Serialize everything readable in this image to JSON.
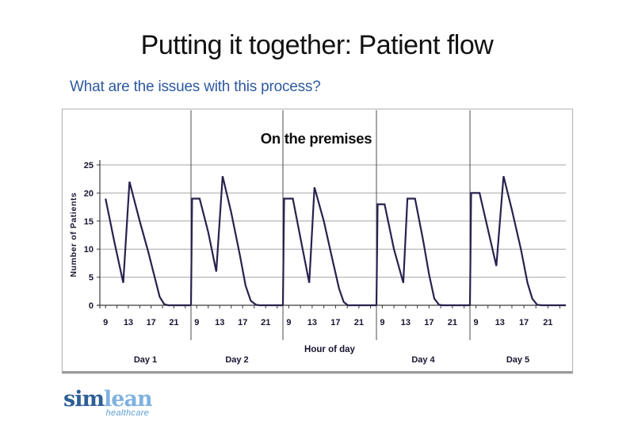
{
  "slide": {
    "title": "Putting it together: Patient flow",
    "subtitle": "What are the issues with this process?"
  },
  "colors": {
    "title_text": "#111111",
    "subtitle_text": "#2d5a9e",
    "line": "#29214d",
    "grid": "#a6a6a6",
    "axis": "#3c3c3c",
    "divider": "#4d4d4d",
    "chart_text": "#17142f",
    "chart_title_text": "#0d0d0d",
    "logo_part1": "#2e5f96",
    "logo_part2": "#7fb2e0",
    "logo_tagline": "#5f9fd4"
  },
  "chart_data": {
    "type": "line",
    "title": "On the premises",
    "ylabel": "Number of Patients",
    "xlabel": "Hour of day",
    "ylim": [
      0,
      25
    ],
    "yticks": [
      0,
      5,
      10,
      15,
      20,
      25
    ],
    "grid": true,
    "hour_range": [
      8,
      24
    ],
    "hour_ticks": [
      9,
      13,
      17,
      21
    ],
    "minor_hour_ticks": [
      9,
      11,
      13,
      15,
      17,
      19,
      21,
      23
    ],
    "legend": "none",
    "series_name": "Number of patients on the premises",
    "day_panels": [
      {
        "label": "Day 1",
        "points": [
          [
            9,
            19
          ],
          [
            10.5,
            11.5
          ],
          [
            12.1,
            4
          ],
          [
            13.2,
            22
          ],
          [
            15,
            15
          ],
          [
            16.5,
            9.5
          ],
          [
            17.5,
            5.5
          ],
          [
            18.5,
            1.5
          ],
          [
            19.3,
            0.2
          ],
          [
            20,
            0
          ],
          [
            24,
            0
          ]
        ]
      },
      {
        "label": "Day 2",
        "points": [
          [
            8,
            0
          ],
          [
            8.2,
            19
          ],
          [
            9.5,
            19
          ],
          [
            11,
            13
          ],
          [
            12.4,
            6
          ],
          [
            13.5,
            23
          ],
          [
            15,
            16.5
          ],
          [
            16.5,
            9
          ],
          [
            17.5,
            3.5
          ],
          [
            18.4,
            0.8
          ],
          [
            19.3,
            0.1
          ],
          [
            19.9,
            0
          ],
          [
            24,
            0
          ]
        ]
      },
      {
        "label": "",
        "points": [
          [
            8,
            0
          ],
          [
            8.2,
            19
          ],
          [
            9.7,
            19
          ],
          [
            11,
            12
          ],
          [
            12.5,
            4
          ],
          [
            13.4,
            21
          ],
          [
            15,
            15
          ],
          [
            16.5,
            8
          ],
          [
            17.6,
            3
          ],
          [
            18.4,
            0.6
          ],
          [
            19.1,
            0
          ],
          [
            24,
            0
          ]
        ]
      },
      {
        "label": "Day 4",
        "points": [
          [
            8,
            0
          ],
          [
            8.2,
            18
          ],
          [
            9.4,
            18
          ],
          [
            11,
            10
          ],
          [
            12.6,
            4
          ],
          [
            13.3,
            19
          ],
          [
            14.6,
            19
          ],
          [
            16,
            11.5
          ],
          [
            17,
            5.5
          ],
          [
            17.9,
            1.2
          ],
          [
            18.7,
            0.1
          ],
          [
            19.3,
            0
          ],
          [
            24,
            0
          ]
        ]
      },
      {
        "label": "Day 5",
        "points": [
          [
            8,
            0
          ],
          [
            8.2,
            20
          ],
          [
            9.6,
            20
          ],
          [
            11,
            13.5
          ],
          [
            12.4,
            7
          ],
          [
            13.6,
            23
          ],
          [
            15,
            17
          ],
          [
            16.5,
            10
          ],
          [
            17.6,
            4
          ],
          [
            18.4,
            1.2
          ],
          [
            19.2,
            0.1
          ],
          [
            20,
            0
          ],
          [
            24,
            0
          ]
        ]
      }
    ]
  },
  "logo": {
    "part1": "sim",
    "part2": "lean",
    "tagline": "healthcare"
  }
}
